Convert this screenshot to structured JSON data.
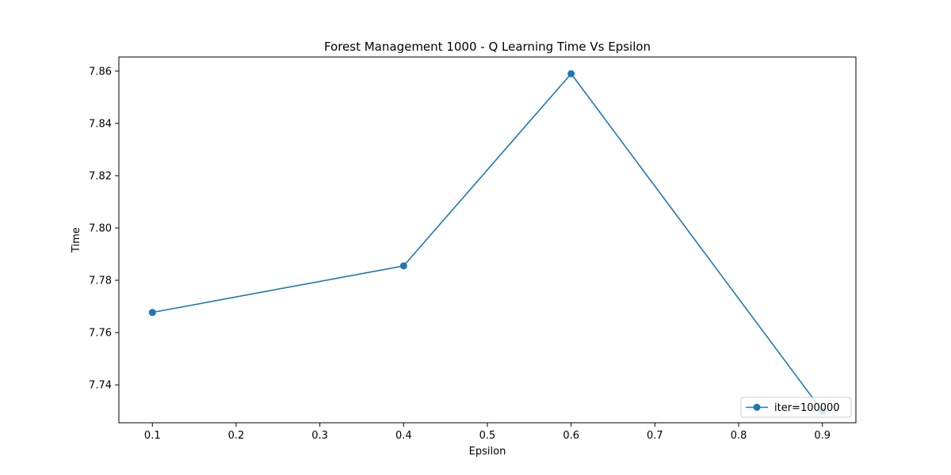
{
  "chart_data": {
    "type": "line",
    "title": "Forest Management 1000 - Q Learning Time Vs Epsilon",
    "xlabel": "Epsilon",
    "ylabel": "Time",
    "xlim": [
      0.06,
      0.94
    ],
    "ylim": [
      7.7255,
      7.8654
    ],
    "x_ticks": [
      0.1,
      0.2,
      0.3,
      0.4,
      0.5,
      0.6,
      0.7,
      0.8,
      0.9
    ],
    "x_tick_labels": [
      "0.1",
      "0.2",
      "0.3",
      "0.4",
      "0.5",
      "0.6",
      "0.7",
      "0.8",
      "0.9"
    ],
    "y_ticks": [
      7.74,
      7.76,
      7.78,
      7.8,
      7.82,
      7.84,
      7.86
    ],
    "y_tick_labels": [
      "7.74",
      "7.76",
      "7.78",
      "7.80",
      "7.82",
      "7.84",
      "7.86"
    ],
    "grid": false,
    "legend_position": "lower-right",
    "series": [
      {
        "name": "iter=100000",
        "color": "#1f77b4",
        "marker": "circle",
        "x": [
          0.1,
          0.4,
          0.6,
          0.9
        ],
        "y": [
          7.7677,
          7.7855,
          7.859,
          7.73
        ]
      }
    ]
  }
}
